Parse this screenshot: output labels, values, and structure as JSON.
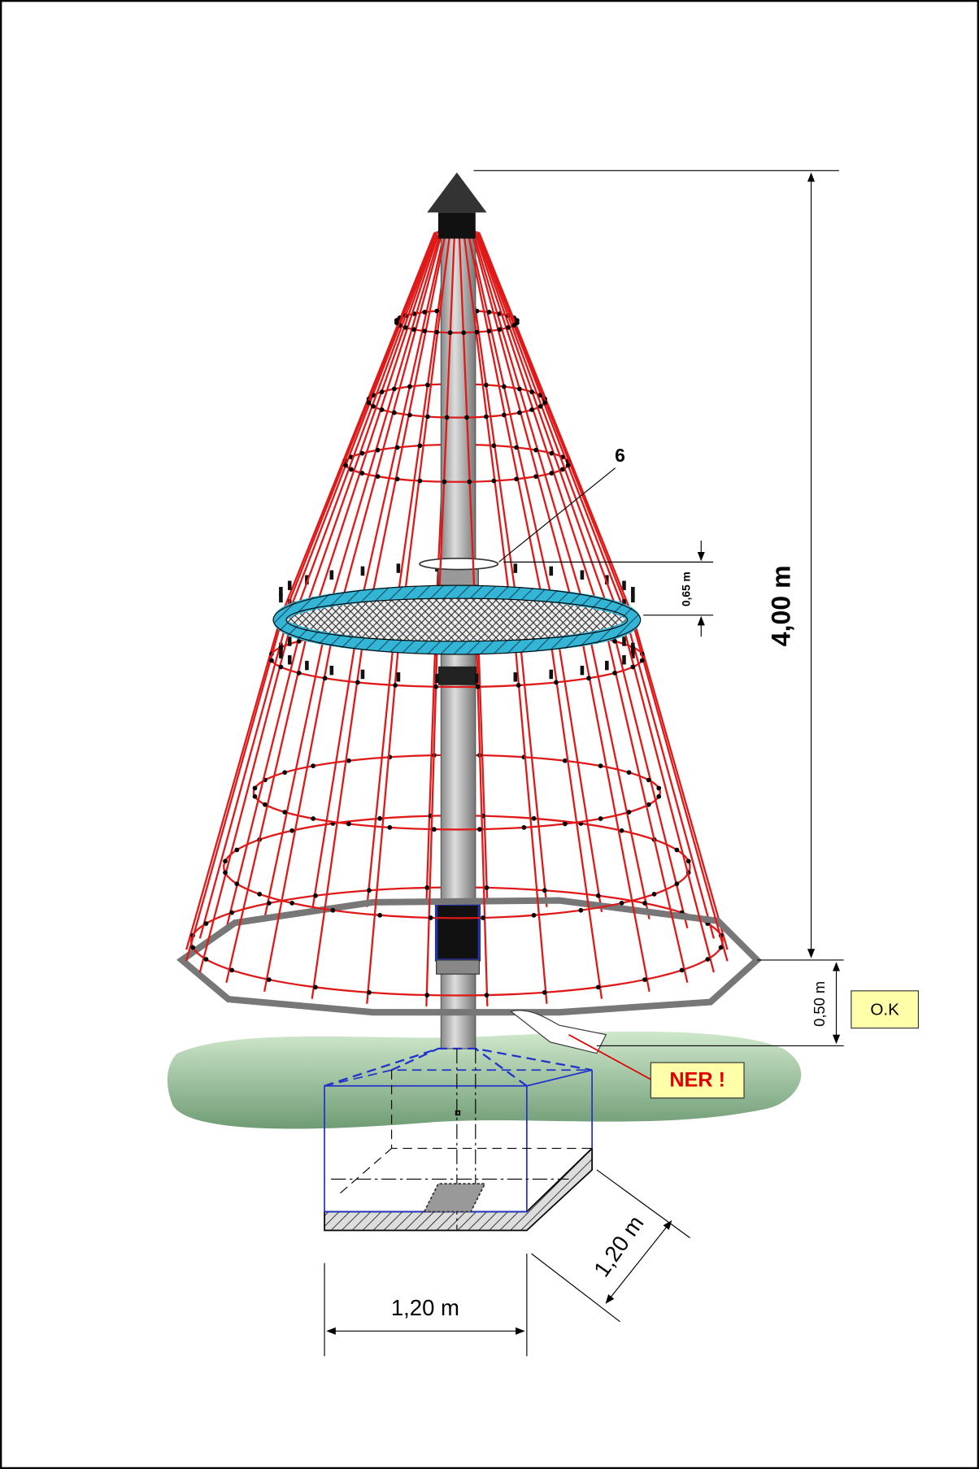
{
  "labels": {
    "callout": "6",
    "ring_height": "0,65 m",
    "total_height": "4,00 m",
    "base_height": "0,50 m",
    "ok": "O.K",
    "not_ok": "NER !",
    "width": "1,20 m",
    "depth": "1,20 m"
  }
}
